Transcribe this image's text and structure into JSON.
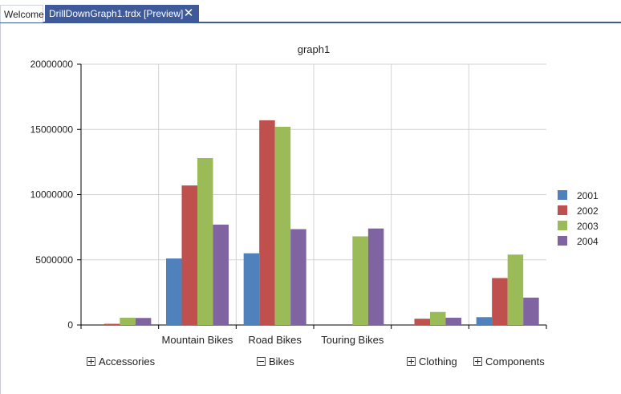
{
  "tabs": [
    {
      "label": "Welcome",
      "active": false
    },
    {
      "label": "DrillDownGraph1.trdx [Preview]",
      "active": true,
      "close_icon": "close-icon"
    }
  ],
  "chart_data": {
    "type": "bar",
    "title": "graph1",
    "xlabel": "",
    "ylabel": "",
    "ylim": [
      0,
      20000000
    ],
    "yticks": [
      "0",
      "5000000",
      "10000000",
      "15000000",
      "20000000"
    ],
    "grid": true,
    "legend_position": "right",
    "categories": [
      "",
      "Mountain Bikes",
      "Road Bikes",
      "Touring Bikes",
      "",
      ""
    ],
    "series": [
      {
        "name": "2001",
        "color": "#4f81bd",
        "values": [
          0,
          5100000,
          5500000,
          0,
          0,
          600000
        ]
      },
      {
        "name": "2002",
        "color": "#c0504d",
        "values": [
          90000,
          10700000,
          15700000,
          0,
          480000,
          3600000
        ]
      },
      {
        "name": "2003",
        "color": "#9bbb59",
        "values": [
          560000,
          12800000,
          15200000,
          6800000,
          1000000,
          5400000
        ]
      },
      {
        "name": "2004",
        "color": "#8064a2",
        "values": [
          540000,
          7700000,
          7350000,
          7400000,
          560000,
          2100000
        ]
      }
    ],
    "groups": [
      {
        "label": "Accessories",
        "state": "collapsed",
        "icon": "plus-square-icon"
      },
      {
        "label": "Bikes",
        "state": "expanded",
        "icon": "minus-square-icon"
      },
      {
        "label": "Clothing",
        "state": "collapsed",
        "icon": "plus-square-icon"
      },
      {
        "label": "Components",
        "state": "collapsed",
        "icon": "plus-square-icon"
      }
    ]
  }
}
